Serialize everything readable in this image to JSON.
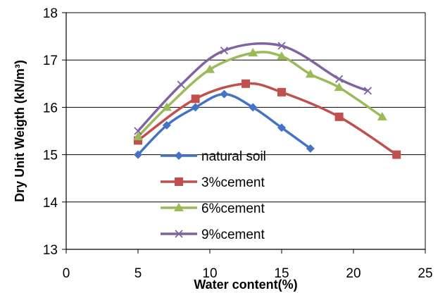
{
  "chart_data": {
    "type": "line",
    "title": "",
    "xlabel": "Water content(%)",
    "ylabel": "Dry Unit Weigth (kN/m³)",
    "xlim": [
      0,
      25
    ],
    "ylim": [
      13,
      18
    ],
    "xticks": [
      "0",
      "5",
      "10",
      "15",
      "20",
      "25"
    ],
    "yticks": [
      "13",
      "14",
      "15",
      "16",
      "17",
      "18"
    ],
    "grid": "horizontal",
    "legend_position": "bottom-left",
    "smooth": true,
    "series": [
      {
        "name": "natural soil",
        "color": "#4472C4",
        "marker": "diamond",
        "x": [
          5,
          7,
          9,
          11,
          13,
          15,
          17
        ],
        "y": [
          15.0,
          15.62,
          16.0,
          16.28,
          16.0,
          15.57,
          15.13
        ]
      },
      {
        "name": "3%cement",
        "color": "#C0504D",
        "marker": "square",
        "x": [
          5,
          9,
          12.5,
          15,
          19,
          23
        ],
        "y": [
          15.3,
          16.18,
          16.5,
          16.32,
          15.8,
          15.0
        ]
      },
      {
        "name": "6%cement",
        "color": "#9BBB59",
        "marker": "triangle",
        "x": [
          5,
          7,
          10,
          13,
          15,
          17,
          19,
          22
        ],
        "y": [
          15.38,
          16.0,
          16.8,
          17.15,
          17.08,
          16.7,
          16.42,
          15.8
        ]
      },
      {
        "name": "9%cement",
        "color": "#8064A2",
        "marker": "x",
        "x": [
          5,
          8,
          11,
          15,
          19,
          21
        ],
        "y": [
          15.5,
          16.48,
          17.2,
          17.3,
          16.6,
          16.35
        ]
      }
    ]
  }
}
